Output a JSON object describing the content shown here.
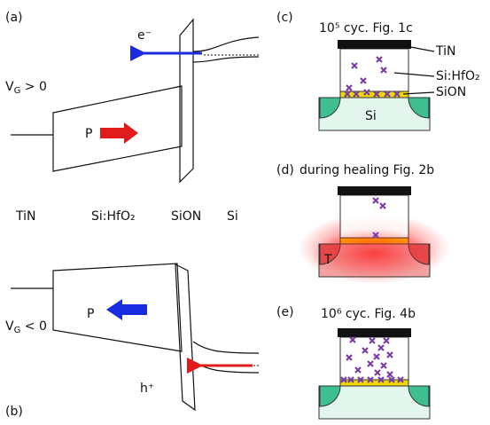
{
  "panel_a": {
    "label": "(a)",
    "carrier": "e⁻",
    "bias": {
      "symbol": "V",
      "subscript": "G",
      "relation": " > 0"
    },
    "polarization": "P"
  },
  "layers": [
    "TiN",
    "Si:HfO₂",
    "SiON",
    "Si"
  ],
  "panel_b": {
    "label": "(b)",
    "carrier": "h⁺",
    "bias": {
      "symbol": "V",
      "subscript": "G",
      "relation": " < 0"
    },
    "polarization": "P"
  },
  "panel_c": {
    "label": "(c)",
    "title": "10⁵ cyc. Fig. 1c",
    "callouts": [
      "TiN",
      "Si:HfO₂",
      "SiON"
    ],
    "substrate": "Si"
  },
  "panel_d": {
    "label": "(d)",
    "title": "during healing Fig. 2b",
    "substrate": "T"
  },
  "panel_e": {
    "label": "(e)",
    "title": "10⁶ cyc. Fig. 4b"
  }
}
